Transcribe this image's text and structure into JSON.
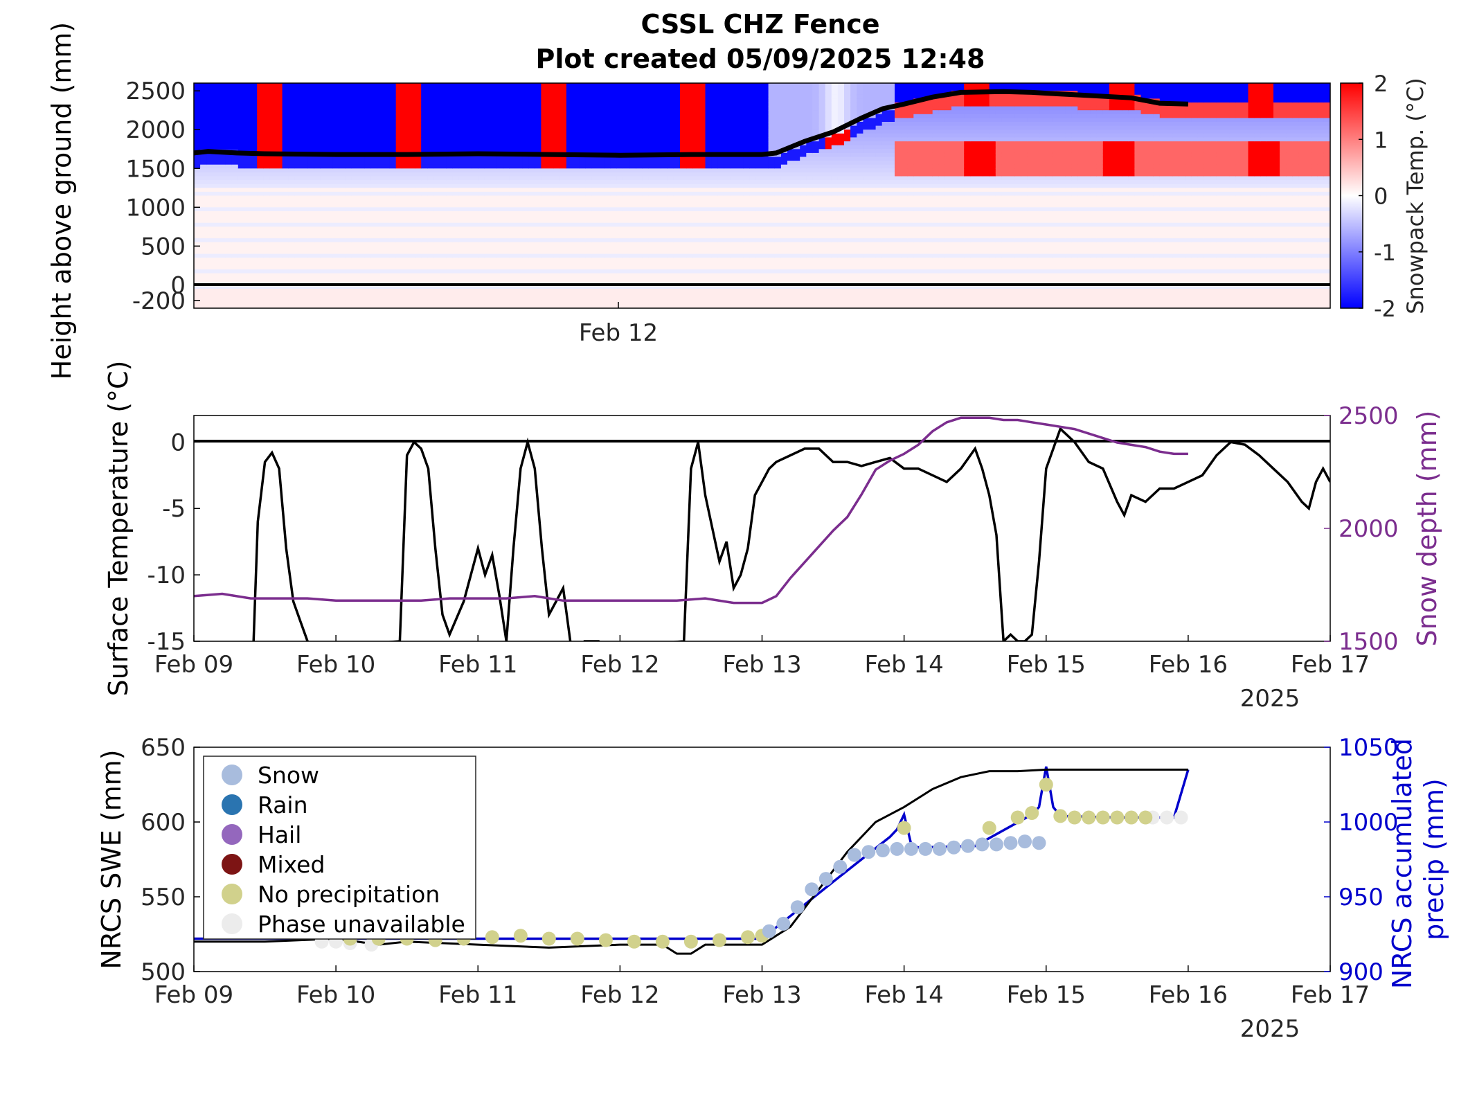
{
  "title": {
    "line1": "CSSL CHZ Fence",
    "line2": "Plot created 05/09/2025 12:48"
  },
  "colors": {
    "snow_depth": "#7b2d8e",
    "precip": "#0000cc",
    "swe": "#000000",
    "temp": "#000000",
    "phase_snow": "#a8bcdd",
    "phase_rain": "#2a74b0",
    "phase_hail": "#9467bd",
    "phase_mixed": "#7d1414",
    "phase_noprecip": "#d1d18c",
    "phase_unavail": "#ececec"
  },
  "chart_data": [
    {
      "type": "heatmap",
      "ylabel": "Height above ground (mm)",
      "yticks": [
        "2500",
        "2000",
        "1500",
        "1000",
        "500",
        "0",
        "-200"
      ],
      "ytick_values": [
        2500,
        2000,
        1500,
        1000,
        500,
        0,
        -200
      ],
      "ylim": [
        -300,
        2600
      ],
      "xticks": [
        "Feb 12"
      ],
      "xtick_values": [
        3
      ],
      "xlim": [
        0,
        8
      ],
      "colorbar": {
        "label": "Snowpack Temp. (°C)",
        "ticks": [
          "2",
          "1",
          "0",
          "-1",
          "-2"
        ],
        "tick_values": [
          2,
          1,
          0,
          -1,
          -2
        ],
        "range": [
          -2,
          2
        ]
      },
      "zero_line": 0,
      "snow_depth_line": {
        "x": [
          0,
          0.1,
          0.3,
          0.5,
          1.0,
          1.5,
          2.0,
          2.5,
          3.0,
          3.5,
          4.0,
          4.1,
          4.3,
          4.5,
          4.7,
          4.85,
          5.0,
          5.2,
          5.4,
          5.7,
          5.9,
          6.0,
          6.3,
          6.6,
          6.8,
          7.0
        ],
        "y": [
          1700,
          1720,
          1700,
          1690,
          1680,
          1680,
          1690,
          1680,
          1670,
          1680,
          1680,
          1700,
          1850,
          1970,
          2150,
          2270,
          2330,
          2420,
          2480,
          2490,
          2480,
          2470,
          2440,
          2410,
          2340,
          2330
        ]
      }
    },
    {
      "type": "line",
      "ylabel": "Surface Temperature (°C)",
      "y2label": "Snow depth (mm)",
      "xticks": [
        "Feb 09",
        "Feb 10",
        "Feb 11",
        "Feb 12",
        "Feb 13",
        "Feb 14",
        "Feb 15",
        "Feb 16",
        "Feb 17"
      ],
      "x_year": "2025",
      "yticks": [
        "0",
        "-5",
        "-10",
        "-15"
      ],
      "ytick_values": [
        0,
        -5,
        -10,
        -15
      ],
      "ylim": [
        -15,
        2
      ],
      "y2ticks": [
        "2500",
        "2000",
        "1500"
      ],
      "y2tick_values": [
        2500,
        2000,
        1500
      ],
      "y2lim": [
        1500,
        2500
      ],
      "xlim": [
        0,
        8
      ],
      "series": [
        {
          "axis": "left",
          "x": [
            0.42,
            0.45,
            0.5,
            0.55,
            0.6,
            0.65,
            0.7,
            0.75,
            0.8,
            0.85,
            1.45,
            1.5,
            1.55,
            1.6,
            1.65,
            1.7,
            1.75,
            1.8,
            1.9,
            2.0,
            2.05,
            2.1,
            2.15,
            2.2,
            2.25,
            2.3,
            2.35,
            2.4,
            2.45,
            2.5,
            2.55,
            2.6,
            2.65,
            2.7,
            2.75,
            2.8,
            2.85,
            2.9,
            3.45,
            3.5,
            3.55,
            3.6,
            3.7,
            3.75,
            3.8,
            3.85,
            3.9,
            3.95,
            4.0,
            4.05,
            4.1,
            4.2,
            4.3,
            4.4,
            4.5,
            4.6,
            4.7,
            4.8,
            4.9,
            5.0,
            5.1,
            5.2,
            5.3,
            5.4,
            5.5,
            5.55,
            5.6,
            5.65,
            5.7,
            5.75,
            5.8,
            5.85,
            5.9,
            5.95,
            6.0,
            6.1,
            6.2,
            6.3,
            6.4,
            6.5,
            6.55,
            6.6,
            6.7,
            6.8,
            6.9,
            7.0,
            7.1,
            7.2,
            7.3,
            7.4,
            7.5,
            7.6,
            7.7,
            7.8,
            7.85,
            7.9,
            7.95,
            8.0
          ],
          "y": [
            -15,
            -6,
            -1.5,
            -0.8,
            -2,
            -8,
            -12,
            -13.5,
            -15,
            -15.5,
            -15,
            -1,
            0,
            -0.5,
            -2,
            -8,
            -13,
            -14.5,
            -12,
            -8,
            -10,
            -8.5,
            -11.5,
            -15,
            -8,
            -2,
            0,
            -2,
            -8,
            -13,
            -12,
            -11,
            -15,
            -16,
            -15,
            -15,
            -15,
            -15.5,
            -15,
            -2,
            0,
            -4,
            -9,
            -7.5,
            -11,
            -10,
            -8,
            -4,
            -3,
            -2,
            -1.5,
            -1,
            -0.5,
            -0.5,
            -1.5,
            -1.5,
            -1.8,
            -1.5,
            -1.2,
            -2,
            -2,
            -2.5,
            -3,
            -2,
            -0.5,
            -2,
            -4,
            -7,
            -15,
            -14.5,
            -15,
            -15,
            -14.5,
            -9,
            -2,
            1,
            0,
            -1.5,
            -2,
            -4.5,
            -5.5,
            -4,
            -4.5,
            -3.5,
            -3.5,
            -3,
            -2.5,
            -1,
            0,
            -0.2,
            -1,
            -2,
            -3,
            -4.5,
            -5,
            -3,
            -2,
            -3
          ]
        },
        {
          "axis": "right",
          "x": [
            0,
            0.2,
            0.4,
            0.6,
            0.8,
            1.0,
            1.2,
            1.4,
            1.6,
            1.8,
            2.0,
            2.2,
            2.4,
            2.6,
            2.8,
            3.0,
            3.2,
            3.4,
            3.6,
            3.8,
            4.0,
            4.1,
            4.2,
            4.3,
            4.4,
            4.5,
            4.6,
            4.7,
            4.8,
            4.9,
            5.0,
            5.1,
            5.2,
            5.3,
            5.4,
            5.5,
            5.6,
            5.7,
            5.8,
            5.9,
            6.0,
            6.1,
            6.2,
            6.3,
            6.4,
            6.5,
            6.6,
            6.7,
            6.8,
            6.9,
            7.0
          ],
          "y": [
            1700,
            1710,
            1690,
            1690,
            1690,
            1680,
            1680,
            1680,
            1680,
            1690,
            1690,
            1690,
            1700,
            1680,
            1680,
            1680,
            1680,
            1680,
            1690,
            1670,
            1670,
            1700,
            1780,
            1850,
            1920,
            1990,
            2050,
            2150,
            2260,
            2300,
            2330,
            2370,
            2430,
            2470,
            2490,
            2490,
            2490,
            2480,
            2480,
            2470,
            2460,
            2450,
            2440,
            2420,
            2400,
            2380,
            2370,
            2360,
            2340,
            2330,
            2330
          ]
        }
      ]
    },
    {
      "type": "scatter",
      "ylabel": "NRCS SWE (mm)",
      "y2label": "NRCS accumulated precip (mm)",
      "xticks": [
        "Feb 09",
        "Feb 10",
        "Feb 11",
        "Feb 12",
        "Feb 13",
        "Feb 14",
        "Feb 15",
        "Feb 16",
        "Feb 17"
      ],
      "x_year": "2025",
      "yticks": [
        "650",
        "600",
        "550",
        "500"
      ],
      "ytick_values": [
        650,
        600,
        550,
        500
      ],
      "ylim": [
        500,
        650
      ],
      "y2ticks": [
        "1050",
        "1000",
        "950",
        "900"
      ],
      "y2tick_values": [
        1050,
        1000,
        950,
        900
      ],
      "y2lim": [
        900,
        1050
      ],
      "xlim": [
        0,
        8
      ],
      "legend_position": "top-left",
      "legend": [
        "Snow",
        "Rain",
        "Hail",
        "Mixed",
        "No precipitation",
        "Phase unavailable"
      ],
      "swe_line": {
        "x": [
          0,
          0.5,
          1.0,
          1.3,
          1.5,
          2.0,
          2.5,
          3.0,
          3.3,
          3.4,
          3.5,
          3.6,
          4.0,
          4.2,
          4.4,
          4.6,
          4.8,
          5.0,
          5.2,
          5.4,
          5.6,
          5.8,
          6.0,
          6.2,
          6.5,
          7.0
        ],
        "y": [
          520,
          520,
          522,
          518,
          520,
          518,
          516,
          518,
          518,
          512,
          512,
          518,
          518,
          530,
          555,
          580,
          600,
          610,
          622,
          630,
          634,
          634,
          635,
          635,
          635,
          635
        ]
      },
      "precip_line": {
        "x": [
          0,
          1.0,
          2.0,
          3.0,
          4.0,
          4.5,
          4.9,
          4.95,
          5.0,
          5.05,
          5.1,
          5.5,
          5.9,
          5.95,
          6.0,
          6.05,
          6.1,
          6.5,
          6.9,
          7.0
        ],
        "y": [
          922,
          922,
          922,
          922,
          922,
          960,
          990,
          995,
          1005,
          985,
          983,
          984,
          1005,
          1010,
          1037,
          1010,
          1004,
          1003,
          1003,
          1035
        ]
      },
      "phase_points": {
        "snow": {
          "x": [
            4.05,
            4.15,
            4.25,
            4.35,
            4.45,
            4.55,
            4.65,
            4.75,
            4.85,
            4.95,
            5.05,
            5.15,
            5.25,
            5.35,
            5.45,
            5.55,
            5.65,
            5.75,
            5.85,
            5.95
          ],
          "y": [
            927,
            932,
            943,
            955,
            962,
            970,
            978,
            980,
            981,
            982,
            982,
            982,
            982,
            983,
            984,
            985,
            985,
            986,
            987,
            986
          ]
        },
        "no_precip": {
          "x": [
            1.1,
            1.3,
            1.5,
            1.7,
            1.9,
            2.1,
            2.3,
            2.5,
            2.7,
            2.9,
            3.1,
            3.3,
            3.5,
            3.7,
            3.9,
            4.0,
            5.0,
            5.6,
            5.8,
            5.9,
            6.0,
            6.1,
            6.2,
            6.3,
            6.4,
            6.5,
            6.6,
            6.7
          ],
          "y": [
            922,
            922,
            922,
            921,
            922,
            923,
            924,
            922,
            922,
            921,
            920,
            920,
            920,
            921,
            923,
            924,
            996,
            996,
            1003,
            1006,
            1025,
            1004,
            1003,
            1003,
            1003,
            1003,
            1003,
            1003
          ]
        },
        "unavailable": {
          "x": [
            0.9,
            1.0,
            1.1,
            1.25,
            6.75,
            6.85,
            6.95
          ],
          "y": [
            920,
            920,
            919,
            918,
            1003,
            1003,
            1003
          ]
        }
      }
    }
  ]
}
